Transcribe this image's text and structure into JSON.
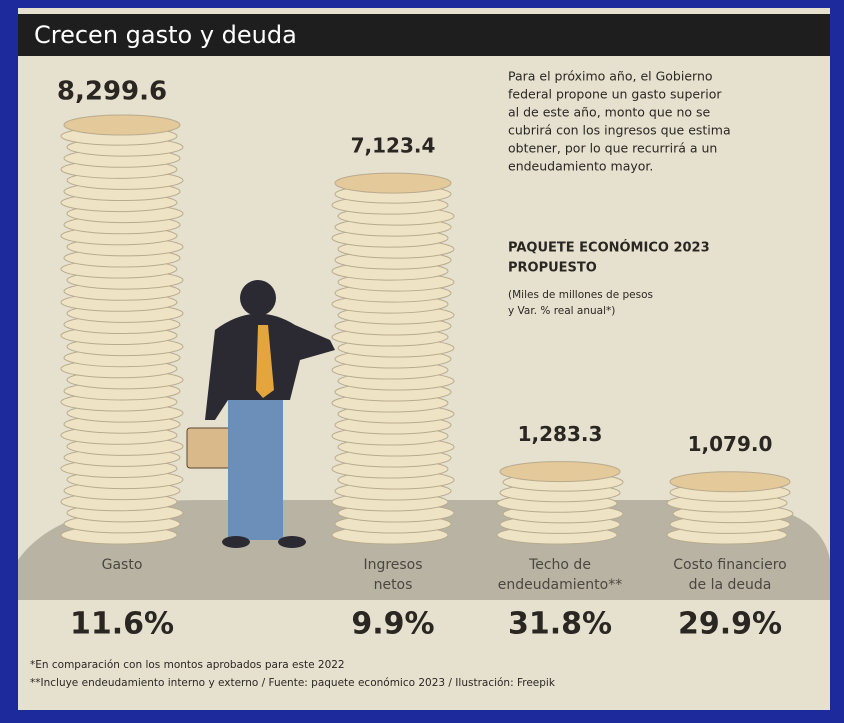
{
  "chart_data": {
    "type": "coin-stack",
    "title": "Crecen gasto y deuda",
    "description": [
      "Para el próximo año, el Gobierno",
      "federal propone un gasto superior",
      "al de este año, monto que no se",
      "cubrirá con los ingresos que estima",
      "obtener, por lo que recurrirá a un",
      "endeudamiento mayor."
    ],
    "subtitle": [
      "PAQUETE ECONÓMICO 2023",
      "PROPUESTO"
    ],
    "units": [
      "(Miles de millones de pesos",
      "y Var. % real anual*)"
    ],
    "categories": [
      [
        "Gasto"
      ],
      [
        "Ingresos",
        "netos"
      ],
      [
        "Techo de",
        "endeudamiento**"
      ],
      [
        "Costo financiero",
        "de la deuda"
      ]
    ],
    "values": [
      8299.6,
      7123.4,
      1283.3,
      1079.0
    ],
    "value_labels": [
      "8,299.6",
      "7,123.4",
      "1,283.3",
      "1,079.0"
    ],
    "changes": [
      11.6,
      9.9,
      31.8,
      29.9
    ],
    "change_labels": [
      "11.6%",
      "9.9%",
      "31.8%",
      "29.9%"
    ],
    "color": "#efe3c6",
    "notes": [
      "*En comparación con los montos aprobados para este 2022",
      "**Incluye endeudamiento interno y externo / Fuente: paquete económico 2023 / Ilustración: Freepik"
    ]
  }
}
